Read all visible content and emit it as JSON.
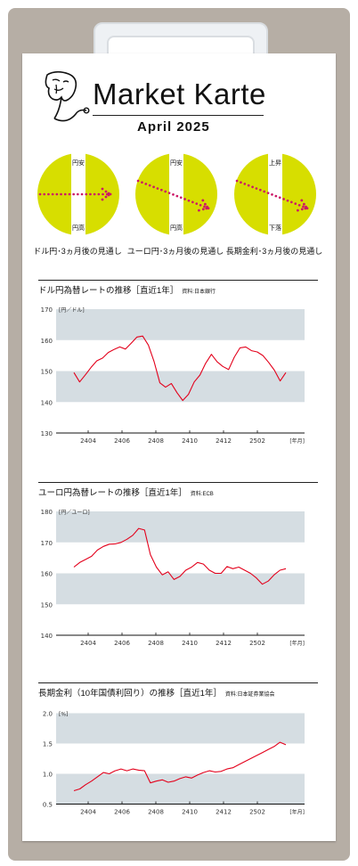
{
  "header": {
    "title": "Market Karte",
    "date": "April   2025"
  },
  "forecasts": [
    {
      "caption": "ドル円･3ヵ月後の見通し",
      "top_label": "円安",
      "bottom_label": "円高",
      "arrow": "flat",
      "color": "#d7de00"
    },
    {
      "caption": "ユーロ円･3ヵ月後の見通し",
      "top_label": "円安",
      "bottom_label": "円高",
      "arrow": "down",
      "color": "#d7de00"
    },
    {
      "caption": "長期金利･3ヵ月後の見通し",
      "top_label": "上昇",
      "bottom_label": "下落",
      "arrow": "down",
      "color": "#d7de00"
    }
  ],
  "chart_data": [
    {
      "type": "line",
      "title": "ドル円為替レートの推移［直近1年］",
      "source": "資料:日本銀行",
      "unit": "[円／ドル]",
      "xlabel": "[年月]",
      "ylim": [
        130,
        170
      ],
      "yticks": [
        "130",
        "140",
        "150",
        "160",
        "170"
      ],
      "xticks": [
        "2404",
        "2406",
        "2408",
        "2410",
        "2412",
        "2502"
      ],
      "line_color": "#e3001b",
      "series": [
        {
          "values": [
            149.5,
            146.5,
            148.8,
            151.2,
            153.3,
            154.2,
            156.0,
            157.0,
            157.8,
            157.1,
            159.0,
            161.0,
            161.3,
            158.4,
            153.0,
            146.2,
            144.8,
            146.0,
            143.0,
            140.5,
            142.5,
            146.5,
            148.7,
            152.5,
            155.4,
            153.0,
            151.5,
            150.5,
            154.5,
            157.5,
            157.8,
            156.6,
            156.2,
            155.0,
            152.8,
            150.3,
            146.8,
            149.5
          ]
        }
      ]
    },
    {
      "type": "line",
      "title": "ユーロ円為替レートの推移［直近1年］",
      "source": "資料:ECB",
      "unit": "[円／ユーロ]",
      "xlabel": "[年月]",
      "ylim": [
        140,
        180
      ],
      "yticks": [
        "140",
        "150",
        "160",
        "170",
        "180"
      ],
      "xticks": [
        "2404",
        "2406",
        "2408",
        "2410",
        "2412",
        "2502"
      ],
      "line_color": "#e3001b",
      "series": [
        {
          "values": [
            162.0,
            163.5,
            164.5,
            165.5,
            167.5,
            168.7,
            169.4,
            169.5,
            170.0,
            171.0,
            172.3,
            174.5,
            174.0,
            166.0,
            162.0,
            159.5,
            160.5,
            158.0,
            159.0,
            161.0,
            162.0,
            163.5,
            163.0,
            161.0,
            160.0,
            160.0,
            162.2,
            161.5,
            162.0,
            161.0,
            160.0,
            158.5,
            156.5,
            157.5,
            159.5,
            161.0,
            161.5
          ]
        }
      ]
    },
    {
      "type": "line",
      "title": "長期金利（10年国債利回り）の推移［直近1年］",
      "source": "資料:日本証券業協会",
      "unit": "[%]",
      "xlabel": "[年月]",
      "ylim": [
        0.5,
        2.0
      ],
      "yticks": [
        "0.5",
        "1.0",
        "1.5",
        "2.0"
      ],
      "xticks": [
        "2404",
        "2406",
        "2408",
        "2410",
        "2412",
        "2502"
      ],
      "line_color": "#e3001b",
      "series": [
        {
          "values": [
            0.72,
            0.75,
            0.82,
            0.88,
            0.95,
            1.02,
            1.0,
            1.05,
            1.08,
            1.05,
            1.08,
            1.06,
            1.05,
            0.85,
            0.88,
            0.9,
            0.86,
            0.88,
            0.92,
            0.95,
            0.93,
            0.98,
            1.02,
            1.05,
            1.03,
            1.04,
            1.08,
            1.1,
            1.15,
            1.2,
            1.25,
            1.3,
            1.35,
            1.4,
            1.45,
            1.52,
            1.48
          ]
        }
      ]
    }
  ]
}
